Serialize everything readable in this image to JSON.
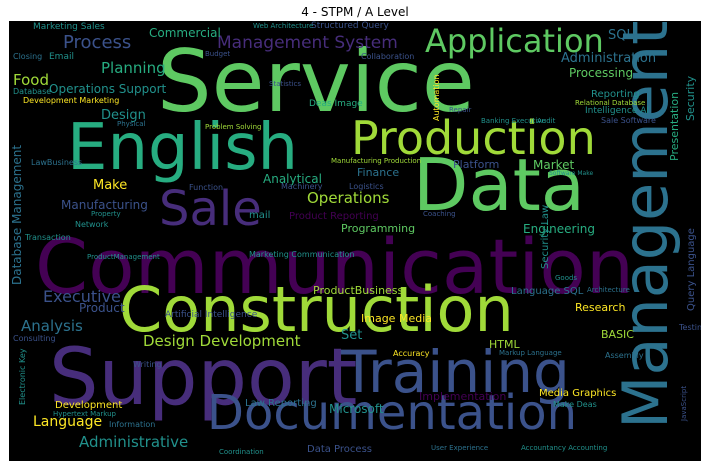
{
  "title": "4 - STPM / A Level",
  "colors": {
    "background": "#000000",
    "yellow": "#fde725",
    "lime": "#a0da39",
    "green": "#5ec962",
    "teal": "#27ad81",
    "cyan": "#21918c",
    "blue": "#2c728e",
    "indigo": "#3b528b",
    "violet": "#472d7b",
    "purple": "#440154"
  },
  "words": [
    "Service",
    "Data",
    "English",
    "Production",
    "Communication",
    "Construction",
    "Support",
    "Training",
    "Documentation",
    "Management",
    "Sale",
    "Application",
    "Process",
    "Management System",
    "Administration",
    "Planning",
    "Operations Support",
    "Food",
    "Design",
    "Make",
    "Executive",
    "Analysis",
    "Design Development",
    "Administrative",
    "Language",
    "Database Management",
    "Manufacturing",
    "Analytical",
    "Finance",
    "Operations",
    "Programming",
    "Engineering",
    "Market",
    "Platform",
    "Processing",
    "Reporting",
    "Presentation",
    "Security",
    "Security Law",
    "Query Language",
    "Language SQL",
    "ProductBusiness",
    "Image Media",
    "Set",
    "HTML",
    "BASIC",
    "Research",
    "Implementation",
    "Microsoft",
    "Law Reporting",
    "Media Graphics",
    "Data Process",
    "Commercial",
    "Structured Query",
    "Marketing Sales",
    "SQL",
    "Product",
    "Development",
    "Consulting",
    "Artificial Intelligence",
    "mail",
    "Email",
    "Closing",
    "Database",
    "Development Marketing",
    "Automation",
    "Collaboration",
    "Intelligence AI",
    "Relational Database",
    "Sale Software",
    "Deas Image",
    "Problem Solving",
    "Manufacturing Production",
    "Banking Executive",
    "Logistics",
    "Product Reporting",
    "Marketing Communication",
    "Network",
    "Transaction",
    "LawBusiness",
    "ProductManagement",
    "Electronic Key",
    "Writing",
    "Hypertext Markup",
    "Information",
    "Coordination",
    "Make Deas",
    "Accountancy Accounting",
    "User Experience",
    "JavaScript",
    "Testing",
    "Architecture",
    "Markup Language",
    "Accuracy",
    "Assembly",
    "Function",
    "Property",
    "Statistics",
    "Repair",
    "Audit",
    "Coaching",
    "Goods",
    "Software Make",
    "Web Architecture",
    "Budget",
    "Physical",
    "Machinery"
  ]
}
